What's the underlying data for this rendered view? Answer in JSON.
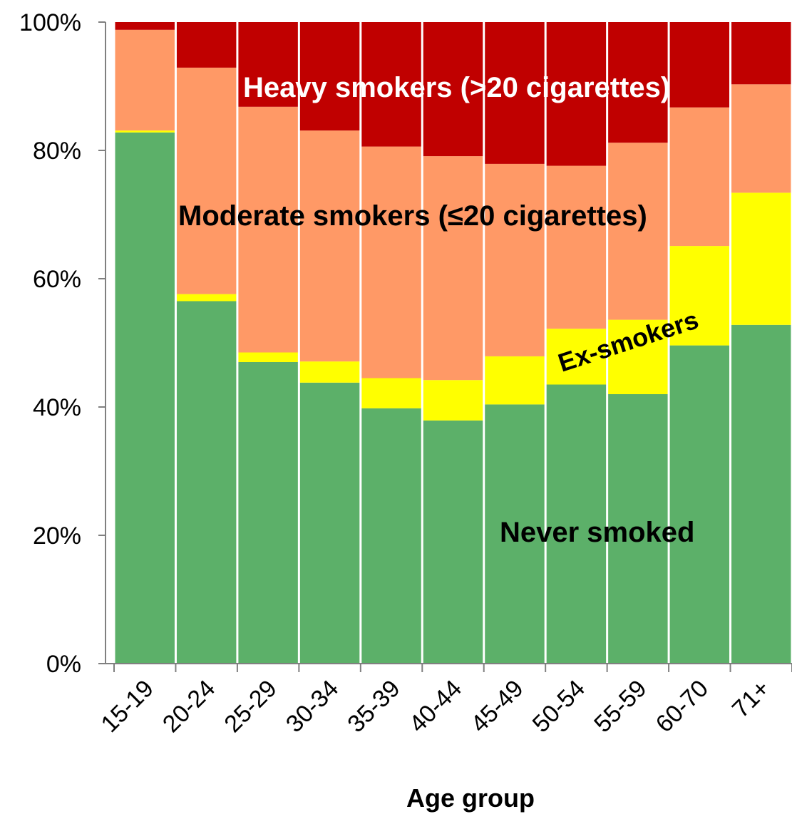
{
  "chart_data": {
    "type": "bar",
    "stacked": true,
    "normalized": true,
    "xlabel": "Age group",
    "ylabel": "",
    "ylim": [
      0,
      100
    ],
    "yticks": [
      "0%",
      "20%",
      "40%",
      "60%",
      "80%",
      "100%"
    ],
    "grid": false,
    "legend": "inline labels",
    "categories": [
      "15-19",
      "20-24",
      "25-29",
      "30-34",
      "35-39",
      "40-44",
      "45-49",
      "50-54",
      "55-59",
      "60-70",
      "71+"
    ],
    "series": [
      {
        "name": "Never smoked",
        "color": "#5cb069",
        "values": [
          82.8,
          56.5,
          47.0,
          43.8,
          39.8,
          37.9,
          40.4,
          43.5,
          42.0,
          49.6,
          52.8
        ]
      },
      {
        "name": "Ex-smokers",
        "color": "#ffff00",
        "values": [
          0.3,
          1.1,
          1.5,
          3.3,
          4.7,
          6.3,
          7.5,
          8.7,
          11.6,
          15.5,
          20.6
        ]
      },
      {
        "name": "Moderate smokers (≤20 cigarettes)",
        "color": "#ff9966",
        "values": [
          15.7,
          35.3,
          38.3,
          36.0,
          36.1,
          34.9,
          30.0,
          25.4,
          27.6,
          21.6,
          16.9
        ]
      },
      {
        "name": "Heavy smokers (>20 cigarettes)",
        "color": "#c00000",
        "values": [
          1.2,
          7.1,
          13.2,
          16.9,
          19.4,
          20.9,
          22.1,
          22.4,
          18.8,
          13.3,
          9.7
        ]
      }
    ]
  }
}
